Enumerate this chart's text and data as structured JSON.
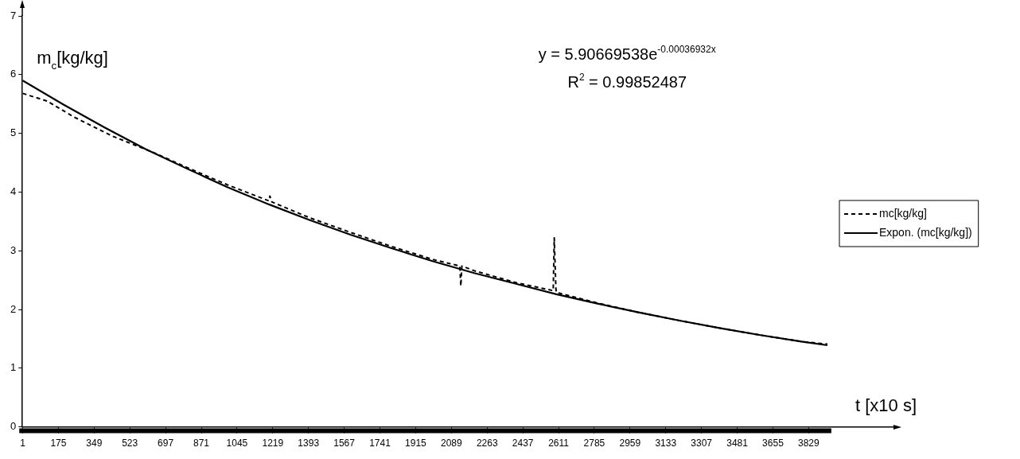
{
  "chart_data": {
    "type": "line",
    "xlabel": "t [x10 s]",
    "ylabel": "m$_{c}$[kg/kg]",
    "annotations": [
      "y = 5.90669538e$^{-0.00036932x}$",
      "R$^{2}$ = 0.99852487"
    ],
    "series": [
      {
        "name": "mc[kg/kg]",
        "color": "#000000",
        "line_style": "dashed",
        "x": [
          1,
          120,
          250,
          440,
          640,
          800,
          1000,
          1200,
          1205,
          1215,
          1400,
          1600,
          1800,
          2000,
          2130,
          2135,
          2140,
          2200,
          2400,
          2585,
          2590,
          2598,
          2600,
          2800,
          3000,
          3200,
          3400,
          3600,
          3800,
          3920
        ],
        "values": [
          5.68,
          5.55,
          5.28,
          4.95,
          4.67,
          4.42,
          4.12,
          3.85,
          3.93,
          3.83,
          3.56,
          3.31,
          3.07,
          2.85,
          2.74,
          2.4,
          2.74,
          2.66,
          2.46,
          2.32,
          3.22,
          2.35,
          2.29,
          2.11,
          1.95,
          1.81,
          1.68,
          1.56,
          1.45,
          1.41
        ]
      },
      {
        "name": "Expon. (mc[kg/kg])",
        "type": "line",
        "color": "#000000",
        "line_style": "solid",
        "x": [
          1,
          200,
          400,
          600,
          800,
          1000,
          1200,
          1400,
          1600,
          1800,
          2000,
          2200,
          2400,
          2600,
          2800,
          3000,
          3200,
          3400,
          3600,
          3800,
          3920
        ],
        "values": [
          5.9,
          5.49,
          5.1,
          4.73,
          4.4,
          4.08,
          3.79,
          3.52,
          3.27,
          3.04,
          2.82,
          2.62,
          2.44,
          2.26,
          2.1,
          1.95,
          1.81,
          1.68,
          1.56,
          1.45,
          1.39
        ]
      }
    ],
    "xlim": [
      0,
      4250
    ],
    "xticks": [
      1,
      175,
      349,
      523,
      697,
      871,
      1045,
      1219,
      1393,
      1567,
      1741,
      1915,
      2089,
      2263,
      2437,
      2611,
      2785,
      2959,
      3133,
      3307,
      3481,
      3655,
      3829
    ],
    "ylim": [
      0,
      7
    ],
    "yticks": [
      0,
      1,
      2,
      3,
      4,
      5,
      6,
      7
    ],
    "grid": false,
    "legend": "right",
    "marker": "none"
  }
}
